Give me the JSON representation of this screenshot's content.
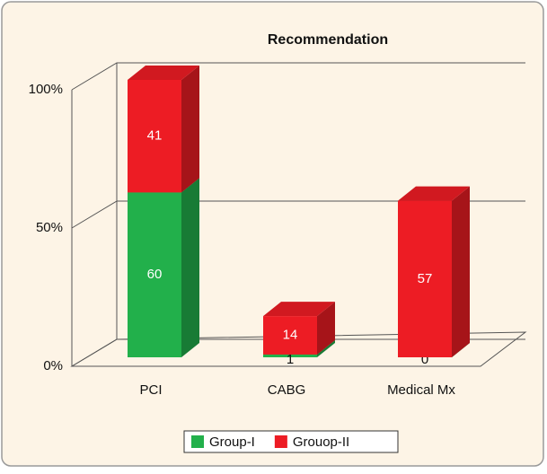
{
  "chart_data": {
    "type": "bar3d_stacked",
    "title": "Recommendation",
    "categories": [
      "PCI",
      "CABG",
      "Medical Mx"
    ],
    "series": [
      {
        "name": "Group-I",
        "color": "#22b04b",
        "values": [
          60,
          1,
          0
        ]
      },
      {
        "name": "Grouop-II",
        "color": "#ed1c24",
        "values": [
          41,
          14,
          57
        ]
      }
    ],
    "ylim": [
      0,
      100
    ],
    "yticks": [
      {
        "value": 0,
        "label": "0%"
      },
      {
        "value": 50,
        "label": "50%"
      },
      {
        "value": 100,
        "label": "100%"
      }
    ],
    "grid": true,
    "legend": "bottom"
  }
}
